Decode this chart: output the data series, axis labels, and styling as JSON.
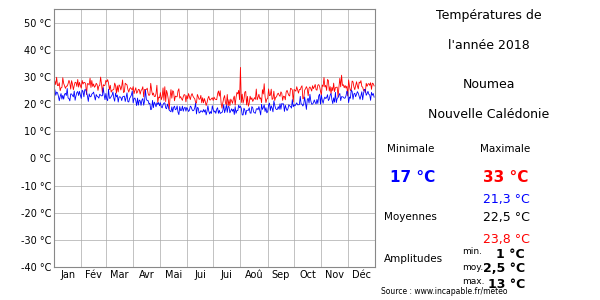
{
  "title_line1": "Températures de",
  "title_line2": "l'année 2018",
  "location_line1": "Noumea",
  "location_line2": "Nouvelle Calédonie",
  "months": [
    "Jan",
    "Fév",
    "Mar",
    "Avr",
    "Mai",
    "Jui",
    "Jui",
    "Aoû",
    "Sep",
    "Oct",
    "Nov",
    "Déc"
  ],
  "ylim": [
    -40,
    55
  ],
  "yticks": [
    -40,
    -30,
    -20,
    -10,
    0,
    10,
    20,
    30,
    40,
    50
  ],
  "ylabel_values": [
    "-40 °C",
    "-30 °C",
    "-20 °C",
    "-10 °C",
    "0 °C",
    "10 °C",
    "20 °C",
    "30 °C",
    "40 °C",
    "50 °C"
  ],
  "min_value": "17 °C",
  "max_value": "33 °C",
  "mean_min": "21,3 °C",
  "mean_overall": "22,5 °C",
  "mean_max": "23,8 °C",
  "amp_min": "1 °C",
  "amp_mean": "2,5 °C",
  "amp_max": "13 °C",
  "color_min": "blue",
  "color_max": "red",
  "source": "Source : www.incapable.fr/meteo",
  "background_color": "#ffffff",
  "grid_color": "#aaaaaa"
}
